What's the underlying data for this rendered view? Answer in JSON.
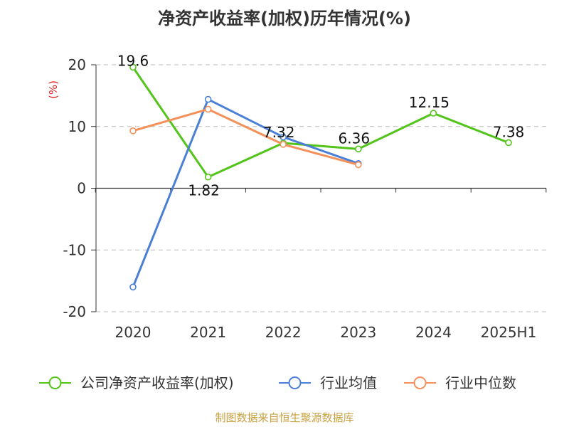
{
  "title": "净资产收益率(加权)历年情况(%)",
  "source": "制图数据来自恒生聚源数据库",
  "colors": {
    "title": "#333333",
    "source": "#c8a040",
    "unit": "#e02020",
    "grid": "#bbbbbb",
    "axis": "#333333"
  },
  "chart_data": {
    "type": "line",
    "title": "净资产收益率(加权)历年情况(%)",
    "xlabel": "",
    "ylabel": "(%)",
    "ylim": [
      -20,
      20
    ],
    "yticks": [
      "20",
      "10",
      "0",
      "-10",
      "-20"
    ],
    "categories": [
      "2020",
      "2021",
      "2022",
      "2023",
      "2024",
      "2025H1"
    ],
    "grid": true,
    "legend_position": "bottom",
    "series": [
      {
        "name": "公司净资产收益率(加权)",
        "color": "#52c41a",
        "values": [
          19.6,
          1.82,
          7.32,
          6.36,
          12.15,
          7.38
        ],
        "labels": [
          "19.6",
          "1.82",
          "7.32",
          "6.36",
          "12.15",
          "7.38"
        ]
      },
      {
        "name": "行业均值",
        "color": "#4a7fd8",
        "values": [
          -16.0,
          14.4,
          8.3,
          4.0,
          null,
          null
        ]
      },
      {
        "name": "行业中位数",
        "color": "#f4905a",
        "values": [
          9.3,
          12.8,
          7.1,
          3.8,
          null,
          null
        ]
      }
    ]
  }
}
